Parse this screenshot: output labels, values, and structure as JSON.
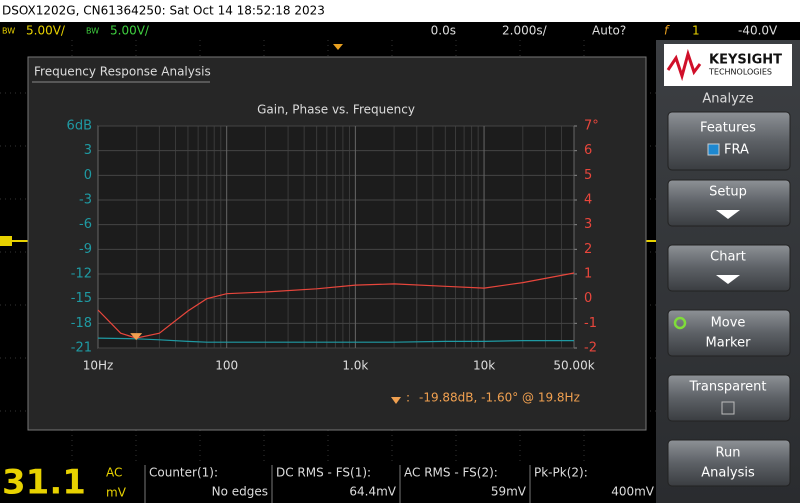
{
  "header": {
    "title": "DSOX1202G, CN61364250: Sat Oct 14 18:52:18 2023",
    "ch1_scale": "5.00V/",
    "ch2_scale": "5.00V/",
    "bw1": "BW",
    "bw2": "BW",
    "delay": "0.0s",
    "timebase": "2.000s/",
    "trigger_mode": "Auto?",
    "trigger_source": "1",
    "trigger_level": "-40.0V"
  },
  "window_title": "Frequency Response Analysis",
  "chart_data": {
    "type": "line",
    "title": "Gain, Phase vs. Frequency",
    "log_x": true,
    "grid": true,
    "x": [
      10,
      15,
      19.8,
      30,
      50,
      70,
      100,
      200,
      500,
      1000,
      2000,
      5000,
      10000,
      20000,
      50000
    ],
    "xlim": [
      10,
      50000
    ],
    "xticks": [
      {
        "value": 10,
        "label": "10Hz"
      },
      100,
      {
        "value": 1000,
        "label": "1.0k"
      },
      {
        "value": 10000,
        "label": "10k"
      },
      {
        "value": 50000,
        "label": "50.00k"
      }
    ],
    "ylim": [
      -21,
      6
    ],
    "yticks": [
      {
        "value": 6,
        "label": "6dB"
      },
      3,
      0,
      -3,
      -6,
      -9,
      -12,
      -15,
      -18,
      -21
    ],
    "y2lim": [
      -2,
      7
    ],
    "y2ticks": [
      {
        "value": 7,
        "label": "7°"
      },
      6,
      5,
      4,
      3,
      2,
      1,
      0,
      -1,
      -2
    ],
    "series": [
      {
        "name": "Gain",
        "color": "#1f9aa3",
        "axis": "y",
        "values": [
          -19.8,
          -19.85,
          -19.88,
          -20.0,
          -20.2,
          -20.3,
          -20.3,
          -20.3,
          -20.3,
          -20.3,
          -20.3,
          -20.2,
          -20.2,
          -20.1,
          -20.1
        ]
      },
      {
        "name": "Phase",
        "color": "#e8463c",
        "axis": "y2",
        "values": [
          -0.46,
          -1.4,
          -1.6,
          -1.4,
          -0.5,
          0,
          0.2,
          0.27,
          0.4,
          0.55,
          0.6,
          0.5,
          0.43,
          0.65,
          1.04
        ]
      }
    ],
    "marker": {
      "x": 19.8,
      "y2": -1.6,
      "label": "-19.88dB, -1.60° @ 19.8Hz"
    }
  },
  "sidebar": {
    "brand": "KEYSIGHT",
    "brand_sub": "TECHNOLOGIES",
    "menu": "Analyze",
    "buttons": [
      [
        "Features",
        "FRA"
      ],
      [
        "Setup"
      ],
      [
        "Chart"
      ],
      [
        "Move",
        "Marker"
      ],
      [
        "Transparent"
      ],
      [
        "Run",
        "Analysis"
      ]
    ]
  },
  "status": {
    "dvm_value": "31.1",
    "dvm_mode": "AC",
    "dvm_unit": "mV",
    "measurements": [
      {
        "label": "Counter(1):",
        "value": "No edges"
      },
      {
        "label": "DC RMS - FS(1):",
        "value": "64.4mV"
      },
      {
        "label": "AC RMS - FS(2):",
        "value": "59mV"
      },
      {
        "label": "Pk-Pk(2):",
        "value": "400mV"
      }
    ]
  }
}
